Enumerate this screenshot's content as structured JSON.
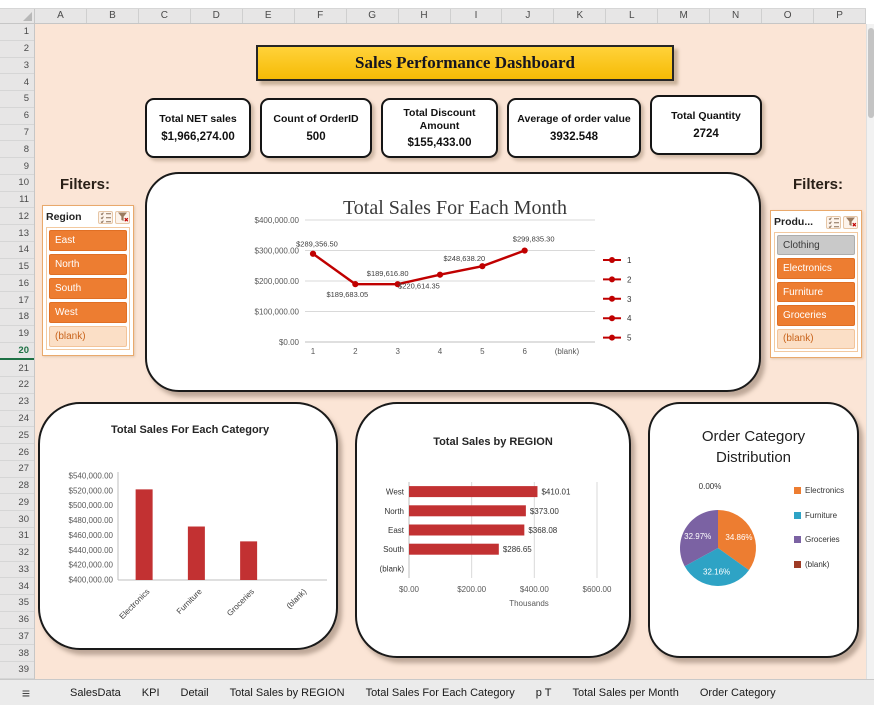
{
  "grid": {
    "columns": [
      "A",
      "B",
      "C",
      "D",
      "E",
      "F",
      "G",
      "H",
      "I",
      "J",
      "K",
      "L",
      "M",
      "N",
      "O",
      "P"
    ],
    "row_count": 39,
    "selected_row": 20
  },
  "dashboard": {
    "title": "Sales Performance Dashboard",
    "filters_left_label": "Filters:",
    "filters_right_label": "Filters:"
  },
  "kpis": [
    {
      "label": "Total NET sales",
      "value": "$1,966,274.00"
    },
    {
      "label": "Count of OrderID",
      "value": "500"
    },
    {
      "label": "Total Discount Amount",
      "value": "$155,433.00"
    },
    {
      "label": "Average of order value",
      "value": "3932.548"
    },
    {
      "label": "Total Quantity",
      "value": "2724"
    }
  ],
  "slicers": {
    "region": {
      "header": "Region",
      "items": [
        {
          "label": "East",
          "state": "selected"
        },
        {
          "label": "North",
          "state": "selected"
        },
        {
          "label": "South",
          "state": "selected"
        },
        {
          "label": "West",
          "state": "selected"
        },
        {
          "label": "(blank)",
          "state": "unselected"
        }
      ]
    },
    "product": {
      "header": "Produ...",
      "items": [
        {
          "label": "Clothing",
          "state": "gray"
        },
        {
          "label": "Electronics",
          "state": "selected"
        },
        {
          "label": "Furniture",
          "state": "selected"
        },
        {
          "label": "Groceries",
          "state": "selected"
        },
        {
          "label": "(blank)",
          "state": "unselected"
        }
      ]
    }
  },
  "icons": {
    "hamburger_menu": "≡",
    "slicer_multiselect": "multi-select-icon",
    "slicer_clear_filter": "clear-filter-icon",
    "select_all_corner": "select-all-corner"
  },
  "chart_data": [
    {
      "type": "line",
      "title": "Total Sales For Each Month",
      "categories": [
        "1",
        "2",
        "3",
        "4",
        "5",
        "6",
        "(blank)"
      ],
      "series": [
        {
          "name": "Total Sales",
          "values": [
            289356.5,
            189683.05,
            189616.8,
            220614.35,
            248638.2,
            299835.3,
            null
          ]
        }
      ],
      "data_labels": [
        "$289,356.50",
        "$189,683.05",
        "$189,616.80",
        "$220,614.35",
        "$248,638.20",
        "$299,835.30"
      ],
      "ytick_labels": [
        "$400,000.00",
        "$300,000.00",
        "$200,000.00",
        "$100,000.00",
        "$0.00"
      ],
      "ylim": [
        0,
        400000
      ],
      "legend": [
        "1",
        "2",
        "3",
        "4",
        "5"
      ],
      "legend_position": "right",
      "grid": true,
      "color": "#C00000"
    },
    {
      "type": "bar",
      "title": "Total Sales For Each Category",
      "categories": [
        "Electronics",
        "Furniture",
        "Groceries",
        "(blank)"
      ],
      "values": [
        522000,
        472000,
        452000,
        0
      ],
      "ytick_labels": [
        "$540,000.00",
        "$520,000.00",
        "$500,000.00",
        "$480,000.00",
        "$460,000.00",
        "$440,000.00",
        "$420,000.00",
        "$400,000.00"
      ],
      "ylim": [
        400000,
        540000
      ],
      "grid": false,
      "color": "#C23132"
    },
    {
      "type": "bar-horizontal",
      "title": "Total Sales by REGION",
      "categories": [
        "West",
        "North",
        "East",
        "South",
        "(blank)"
      ],
      "values": [
        410.01,
        373.0,
        368.08,
        286.65,
        0
      ],
      "data_labels": [
        "$410.01",
        "$373.00",
        "$368.08",
        "$286.65",
        ""
      ],
      "xtick_labels": [
        "$0.00",
        "$200.00",
        "$400.00",
        "$600.00"
      ],
      "xlim": [
        0,
        600
      ],
      "xlabel": "Thousands",
      "grid": true,
      "color": "#C23132"
    },
    {
      "type": "pie",
      "title": "Order Category Distribution",
      "labels": [
        "Electronics",
        "Furniture",
        "Groceries",
        "(blank)"
      ],
      "values": [
        34.86,
        32.16,
        32.97,
        0.0
      ],
      "slice_labels": [
        "34.86%",
        "32.16%",
        "32.97%",
        "0.00%"
      ],
      "colors": [
        "#ED7D31",
        "#2EA3C5",
        "#7B62A3",
        "#9E3B25"
      ],
      "legend_position": "right"
    }
  ],
  "sheet_tabs": [
    "SalesData",
    "KPI",
    "Detail",
    "Total Sales by REGION",
    "Total Sales For Each Category",
    "p T",
    "Total Sales per Month",
    "Order Category"
  ],
  "colors": {
    "page_bg": "#FBE5D6",
    "banner_gold": "#FFC000",
    "slicer_orange": "#ED7D31",
    "line_red": "#C00000",
    "bar_red": "#C23132"
  }
}
